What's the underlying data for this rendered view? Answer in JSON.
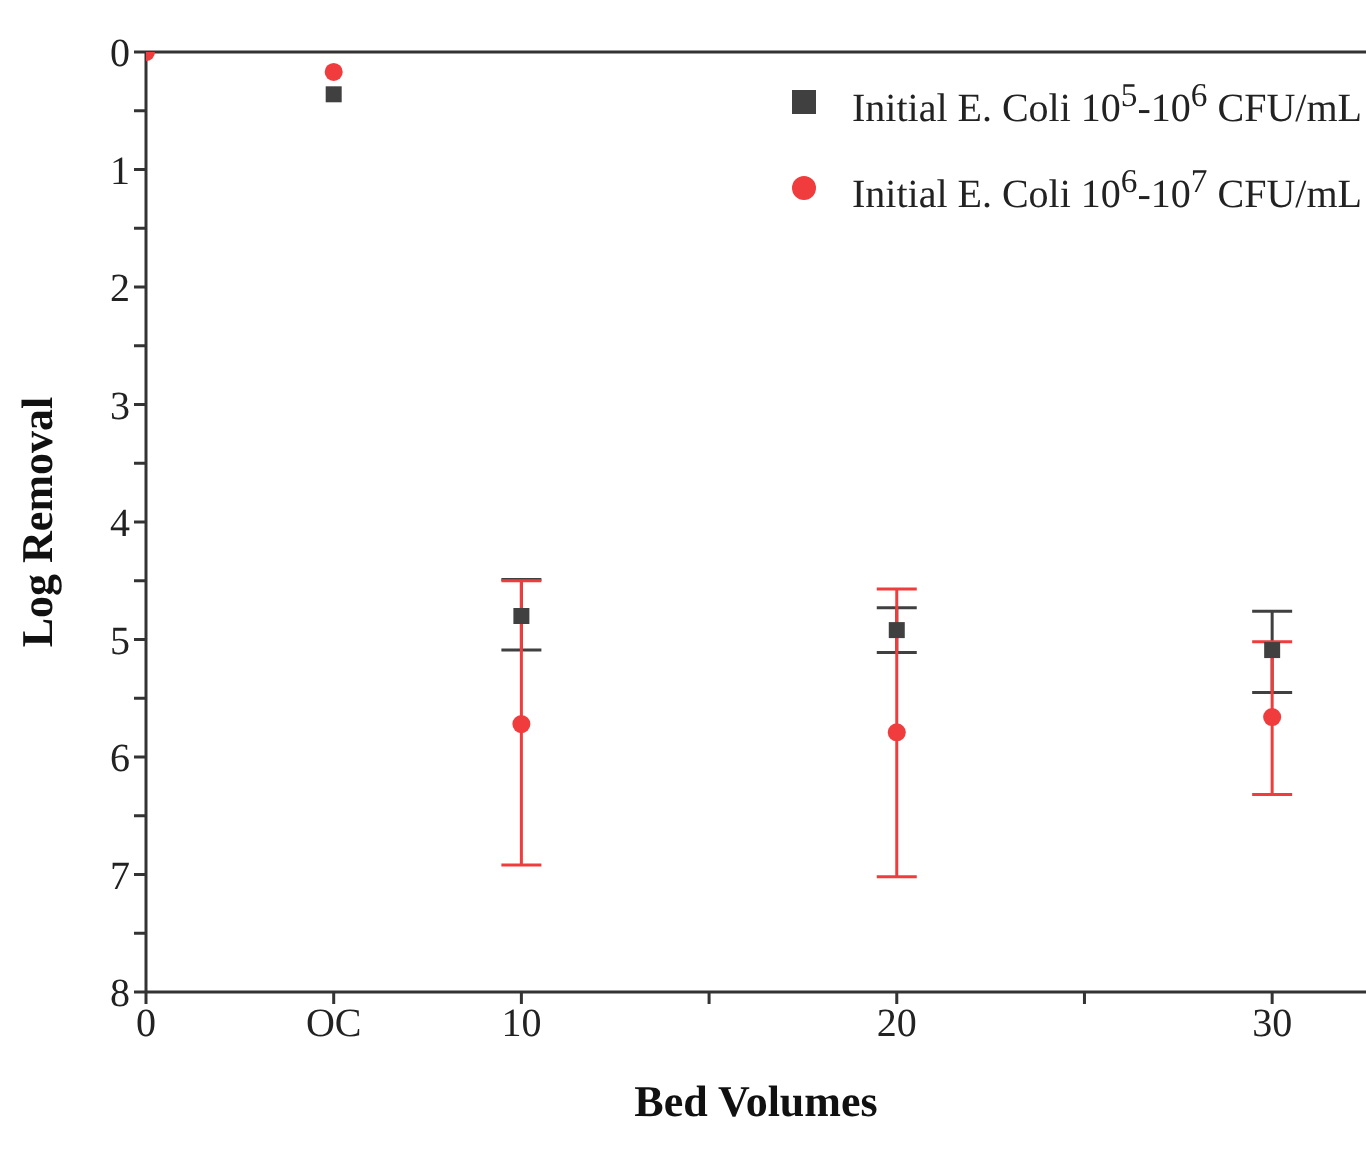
{
  "chart_data": {
    "type": "scatter",
    "xlabel": "Bed Volumes",
    "ylabel": "Log Removal",
    "x": [
      0,
      5,
      10,
      20,
      30
    ],
    "series": [
      {
        "name": "Initial E. Coli 10$^{5}$-10$^{6}$ CFU/mL",
        "color": "#404040",
        "marker": "square",
        "values": [
          null,
          0.36,
          4.8,
          4.92,
          5.09
        ],
        "errors": [
          null,
          null,
          [
            4.49,
            5.09
          ],
          [
            4.73,
            5.11
          ],
          [
            4.76,
            5.45
          ]
        ]
      },
      {
        "name": "Initial E. Coli 10$^{6}$-10$^{7}$ CFU/mL",
        "color": "#f03c3c",
        "marker": "circle",
        "values": [
          0,
          0.17,
          5.72,
          5.79,
          5.66
        ],
        "errors": [
          null,
          null,
          [
            4.5,
            6.92
          ],
          [
            4.57,
            7.02
          ],
          [
            5.02,
            6.32
          ]
        ]
      }
    ],
    "xlim": [
      0,
      32.5
    ],
    "xticks": [
      0,
      {
        "value": 5,
        "label": "OC"
      },
      10,
      {
        "value": 15,
        "label": null
      },
      20,
      {
        "value": 25,
        "label": null
      },
      30
    ],
    "ylim": [
      8,
      0
    ],
    "yticks": [
      0,
      {
        "value": 0.5,
        "label": null
      },
      1,
      {
        "value": 1.5,
        "label": null
      },
      2,
      {
        "value": 2.5,
        "label": null
      },
      3,
      {
        "value": 3.5,
        "label": null
      },
      4,
      {
        "value": 4.5,
        "label": null
      },
      5,
      {
        "value": 5.5,
        "label": null
      },
      6,
      {
        "value": 6.5,
        "label": null
      },
      7,
      {
        "value": 7.5,
        "label": null
      },
      8
    ],
    "grid": false,
    "legend": "top right"
  }
}
